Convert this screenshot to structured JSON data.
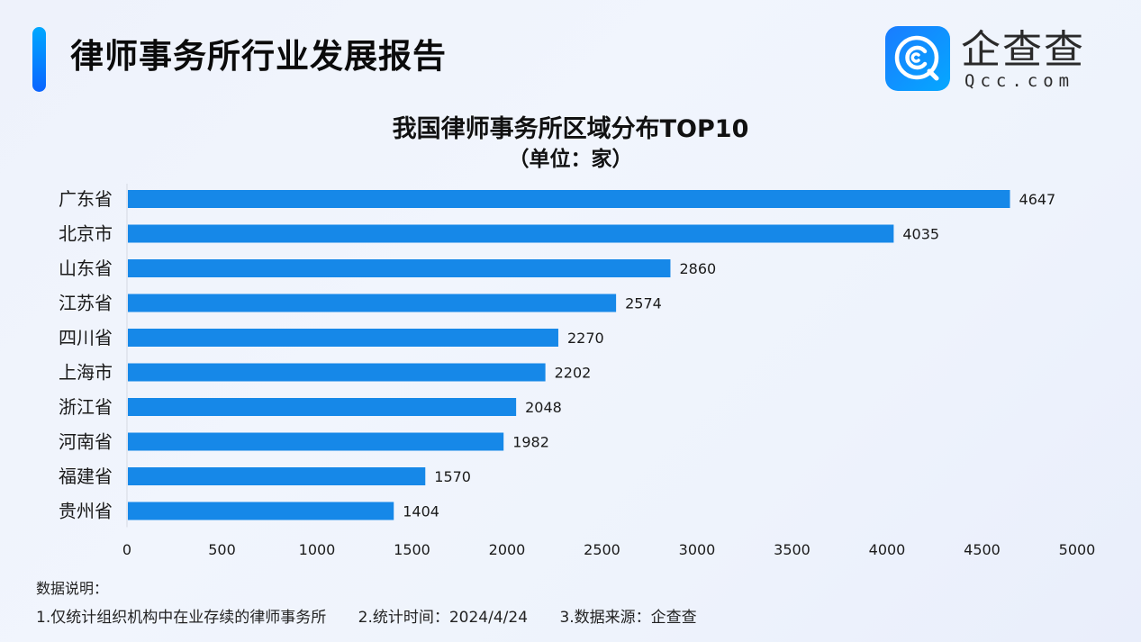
{
  "header": {
    "report_title": "律师事务所行业发展报告",
    "logo": {
      "cn": "企查查",
      "en": "Qcc.com",
      "brand_color": "#0f7bff"
    }
  },
  "chart_data": {
    "type": "bar",
    "orientation": "horizontal",
    "title": "我国律师事务所区域分布TOP10",
    "subtitle": "（单位：家）",
    "categories": [
      "广东省",
      "北京市",
      "山东省",
      "江苏省",
      "四川省",
      "上海市",
      "浙江省",
      "河南省",
      "福建省",
      "贵州省"
    ],
    "values": [
      4647,
      4035,
      2860,
      2574,
      2270,
      2202,
      2048,
      1982,
      1570,
      1404
    ],
    "xlim": [
      0,
      5000
    ],
    "xticks": [
      "0",
      "500",
      "1000",
      "1500",
      "2000",
      "2500",
      "3000",
      "3500",
      "4000",
      "4500",
      "5000"
    ],
    "xlabel": "",
    "ylabel": "",
    "grid": false,
    "bar_color": "#1688e8",
    "data_labels": true
  },
  "notes": {
    "title": "数据说明：",
    "items": [
      "1.仅统计组织机构中在业存续的律师事务所",
      "2.统计时间：2024/4/24",
      "3.数据来源：企查查"
    ]
  }
}
